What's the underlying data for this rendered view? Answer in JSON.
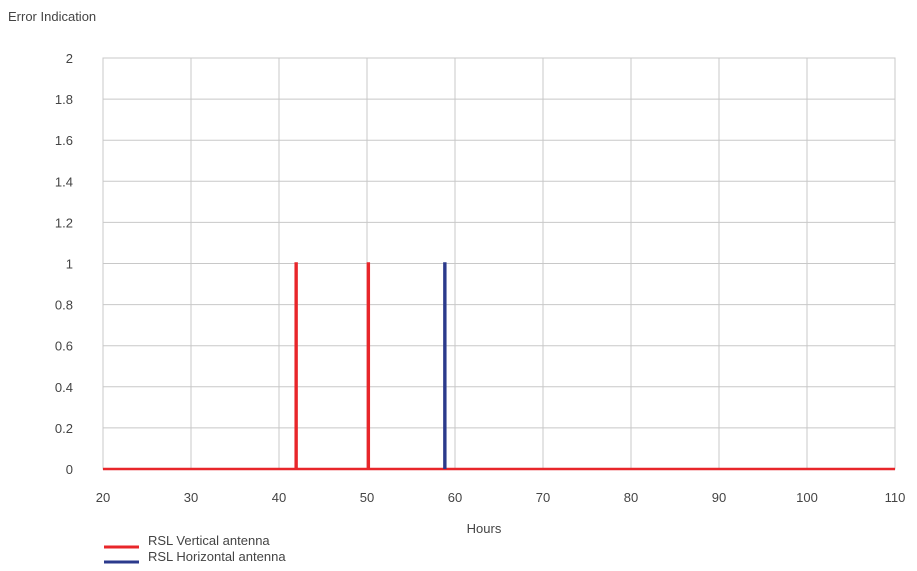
{
  "chart_data": {
    "type": "line",
    "title": "",
    "ylabel": "Error Indication",
    "xlabel": "Hours",
    "xlim": [
      20,
      110
    ],
    "ylim": [
      0,
      2
    ],
    "x_ticks": [
      "20",
      "30",
      "40",
      "50",
      "60",
      "70",
      "80",
      "90",
      "100",
      "110"
    ],
    "y_ticks": [
      "0",
      "0.2",
      "0.4",
      "0.6",
      "0.8",
      "1",
      "1.2",
      "1.4",
      "1.6",
      "1.8",
      "2"
    ],
    "grid": true,
    "legend_position": "bottom-left",
    "series": [
      {
        "name": "RSL Vertical antenna",
        "color": "#e8262a",
        "points": [
          [
            20,
            0
          ],
          [
            41.9,
            0
          ],
          [
            41.9,
            1
          ],
          [
            42.0,
            1
          ],
          [
            42.0,
            0
          ],
          [
            50.1,
            0
          ],
          [
            50.1,
            1
          ],
          [
            50.2,
            1
          ],
          [
            50.2,
            0
          ],
          [
            110,
            0
          ]
        ]
      },
      {
        "name": "RSL Horizontal antenna",
        "color": "#2b3a8c",
        "points": [
          [
            58.8,
            0
          ],
          [
            58.8,
            1
          ],
          [
            58.9,
            1
          ],
          [
            58.9,
            0
          ]
        ]
      }
    ]
  }
}
